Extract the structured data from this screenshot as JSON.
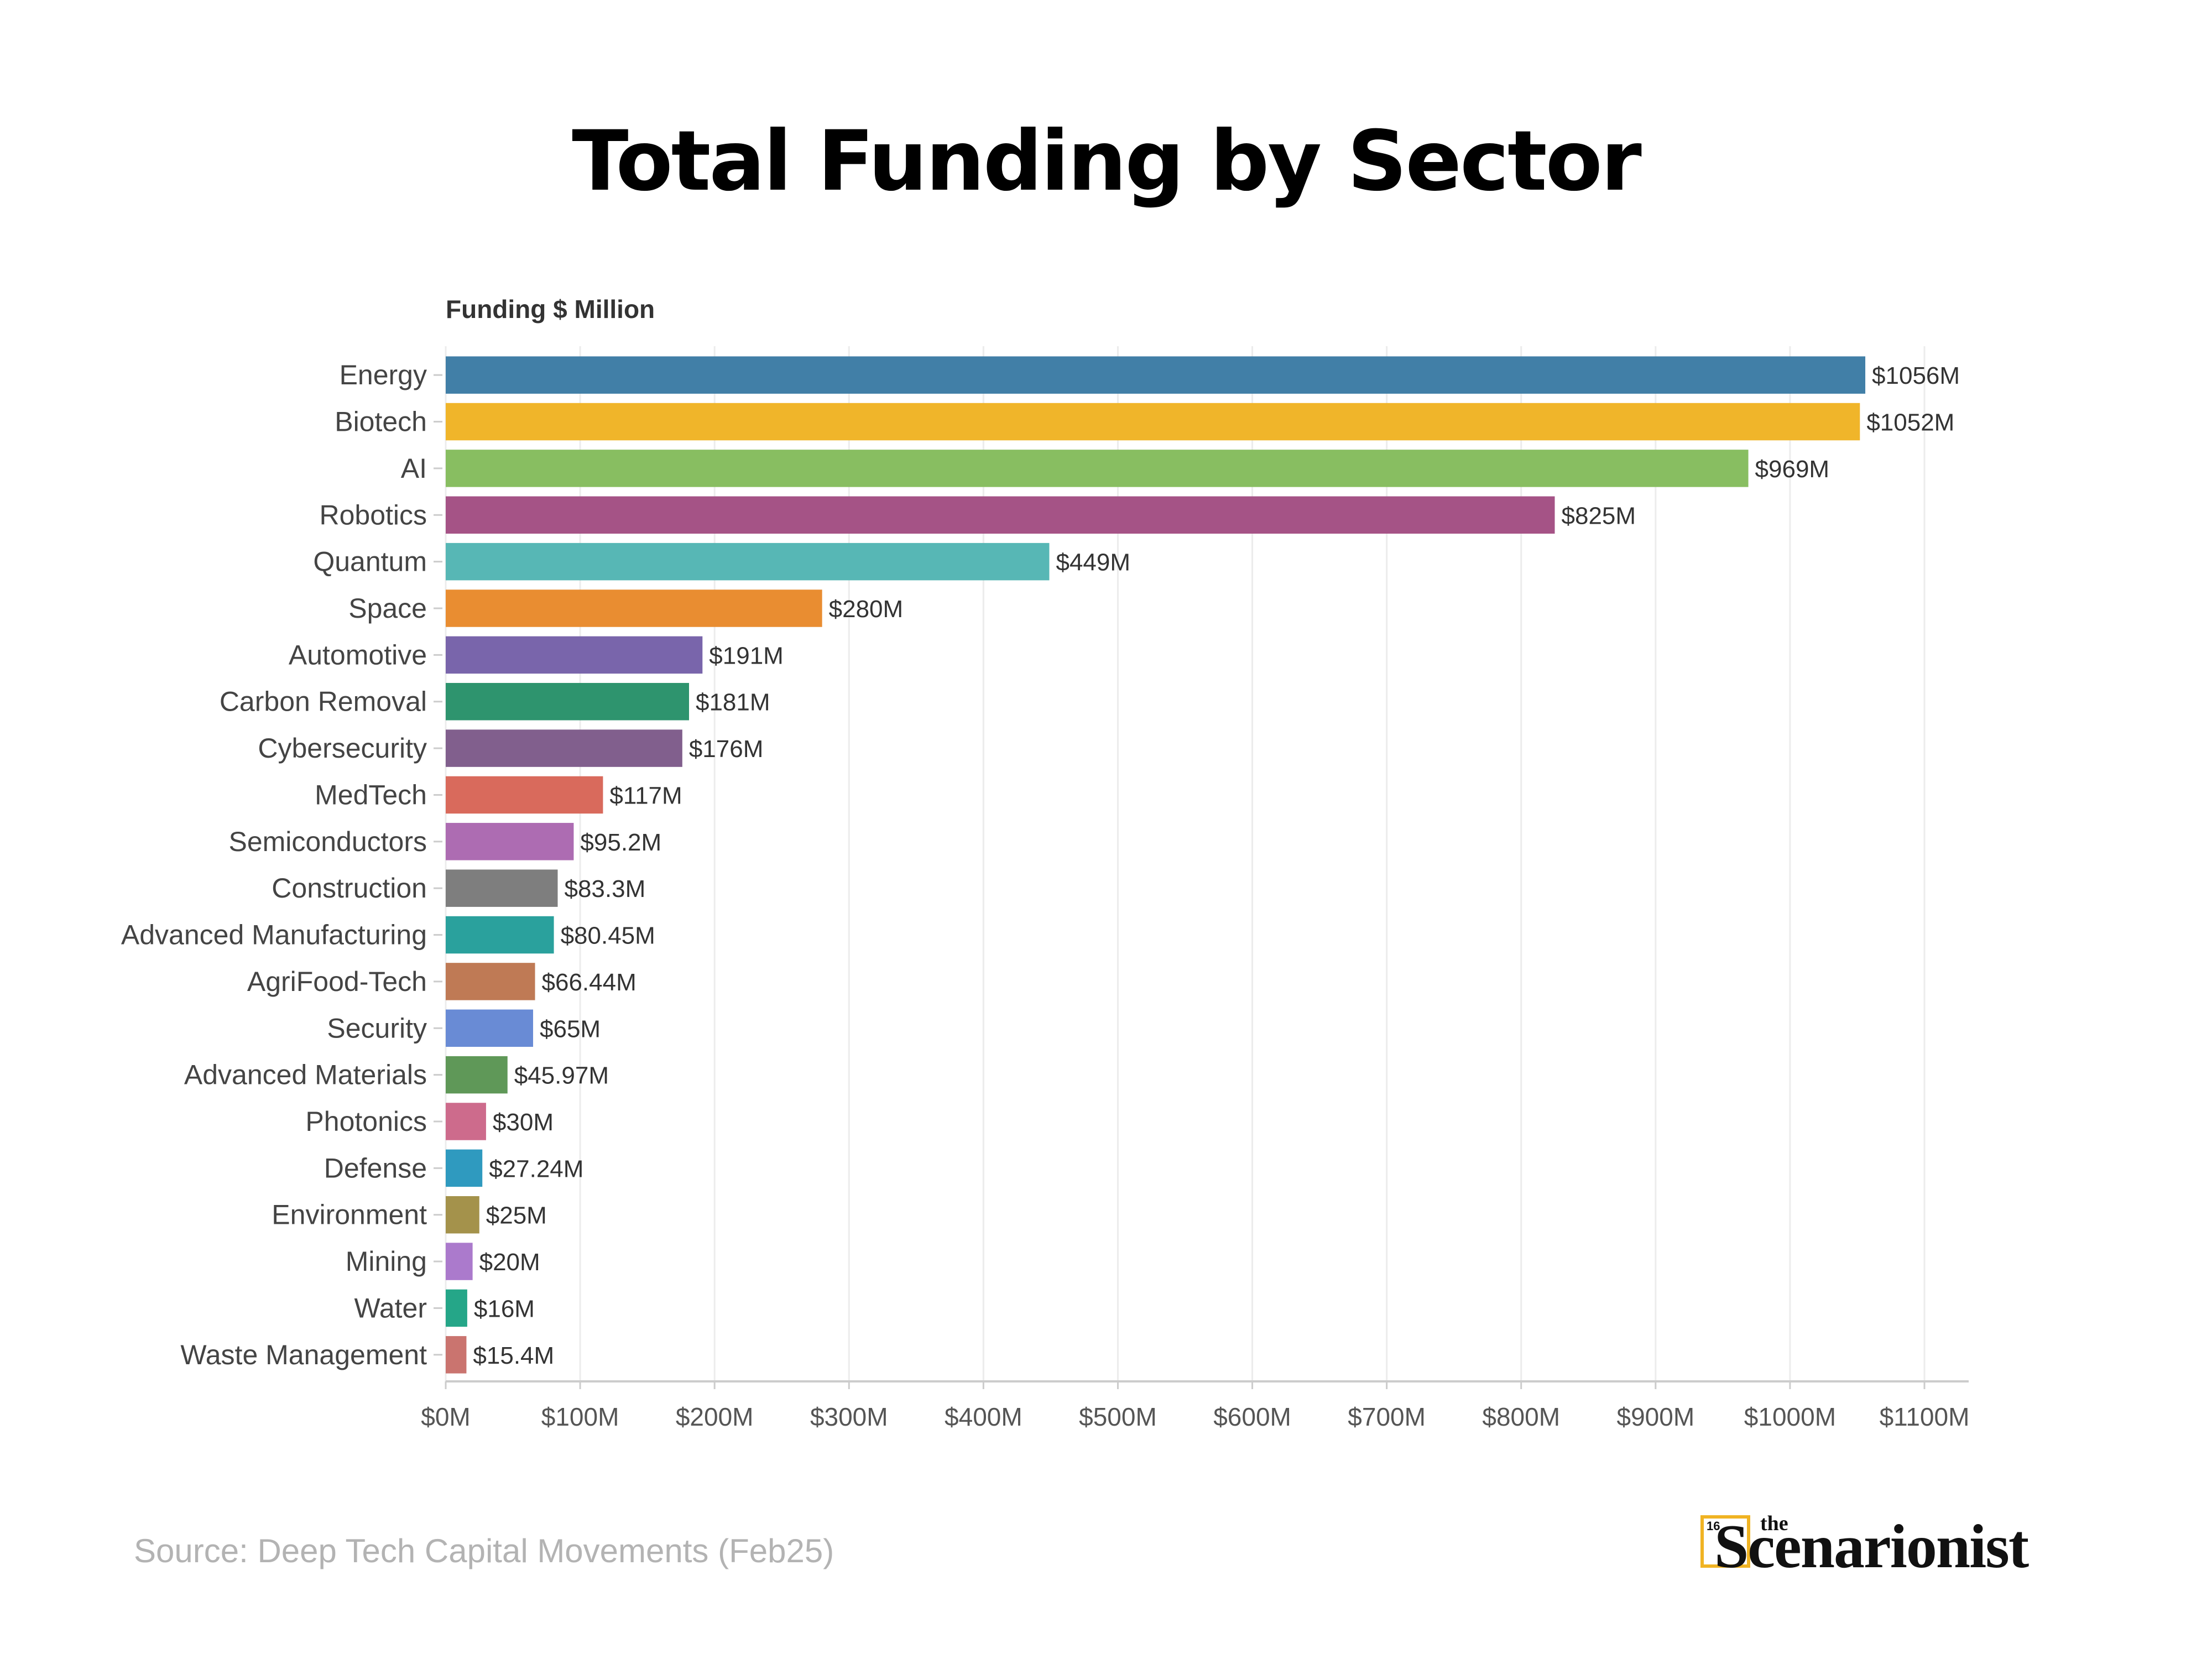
{
  "title": "Total Funding by Sector",
  "source": "Source: Deep Tech Capital Movements (Feb25)",
  "logo": {
    "badge": "16",
    "small": "the",
    "word": "Scenarionist",
    "accent_color": "#f0b323"
  },
  "chart_data": {
    "type": "bar",
    "orientation": "horizontal",
    "title": "Total Funding by Sector",
    "xlabel": "",
    "ylabel": "Funding $ Million",
    "xlim": [
      0,
      1100
    ],
    "grid": true,
    "legend": "none",
    "tick_values": [
      0,
      100,
      200,
      300,
      400,
      500,
      600,
      700,
      800,
      900,
      1000,
      1100
    ],
    "tick_labels": [
      "$0M",
      "$100M",
      "$200M",
      "$300M",
      "$400M",
      "$500M",
      "$600M",
      "$700M",
      "$800M",
      "$900M",
      "$1000M",
      "$1100M"
    ],
    "categories": [
      "Energy",
      "Biotech",
      "AI",
      "Robotics",
      "Quantum",
      "Space",
      "Automotive",
      "Carbon Removal",
      "Cybersecurity",
      "MedTech",
      "Semiconductors",
      "Construction",
      "Advanced Manufacturing",
      "AgriFood-Tech",
      "Security",
      "Advanced Materials",
      "Photonics",
      "Defense",
      "Environment",
      "Mining",
      "Water",
      "Waste Management"
    ],
    "values": [
      1056,
      1052,
      969,
      825,
      449,
      280,
      191,
      181,
      176,
      117,
      95.2,
      83.3,
      80.45,
      66.44,
      65,
      45.97,
      30,
      27.24,
      25,
      20,
      16,
      15.4
    ],
    "value_labels": [
      "$1056M",
      "$1052M",
      "$969M",
      "$825M",
      "$449M",
      "$280M",
      "$191M",
      "$181M",
      "$176M",
      "$117M",
      "$95.2M",
      "$83.3M",
      "$80.45M",
      "$66.44M",
      "$65M",
      "$45.97M",
      "$30M",
      "$27.24M",
      "$25M",
      "$20M",
      "$16M",
      "$15.4M"
    ],
    "colors": [
      "#3b7ba4",
      "#f0b323",
      "#84bc5c",
      "#a24d82",
      "#52b5b3",
      "#e8892a",
      "#7560a8",
      "#279169",
      "#7d5a89",
      "#d86557",
      "#aa67b0",
      "#7a7a7a",
      "#239e9a",
      "#bd7650",
      "#6487d4",
      "#5a9553",
      "#cb6688",
      "#2897bd",
      "#a18e45",
      "#a876ca",
      "#1ea384",
      "#c8706a"
    ]
  }
}
